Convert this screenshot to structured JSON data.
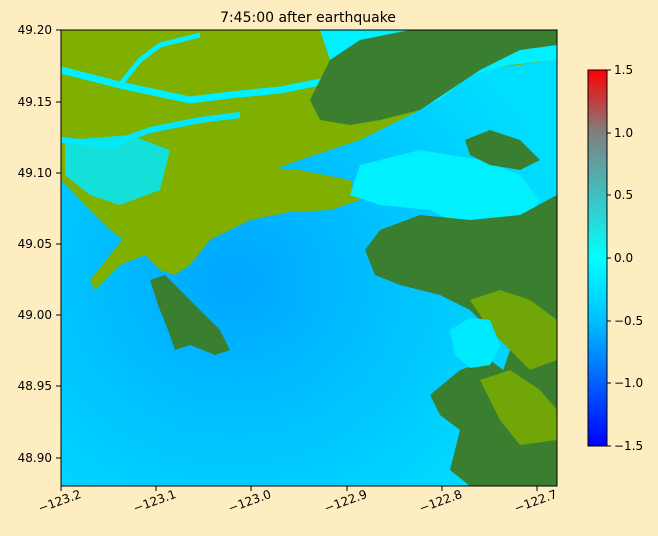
{
  "chart_data": {
    "type": "heatmap",
    "title": "7:45:00 after earthquake",
    "xlabel": "",
    "ylabel": "",
    "xlim": [
      -123.2,
      -122.69
    ],
    "ylim": [
      48.88,
      49.2
    ],
    "x_ticks": [
      -123.2,
      -123.1,
      -123.0,
      -122.9,
      -122.8,
      -122.7
    ],
    "x_tick_labels": [
      "−123.2",
      "−123.1",
      "−123.0",
      "−122.9",
      "−122.8",
      "−122.7"
    ],
    "y_ticks": [
      48.9,
      48.95,
      49.0,
      49.05,
      49.1,
      49.15,
      49.2
    ],
    "y_tick_labels": [
      "48.90",
      "48.95",
      "49.00",
      "49.05",
      "49.10",
      "49.15",
      "49.20"
    ],
    "colorbar": {
      "min": -1.5,
      "max": 1.5,
      "ticks": [
        -1.5,
        -1.0,
        -0.5,
        0.0,
        0.5,
        1.0,
        1.5
      ],
      "tick_labels": [
        "−1.5",
        "−1.0",
        "−0.5",
        "0.0",
        "0.5",
        "1.0",
        "1.5"
      ],
      "colors": [
        "#0000ff",
        "#00bfff",
        "#00ffff",
        "#40c0c0",
        "#808080",
        "#ff0000"
      ]
    },
    "land_colors": {
      "lowland": "#7fb000",
      "upland": "#3a7f30"
    },
    "grid": false
  }
}
